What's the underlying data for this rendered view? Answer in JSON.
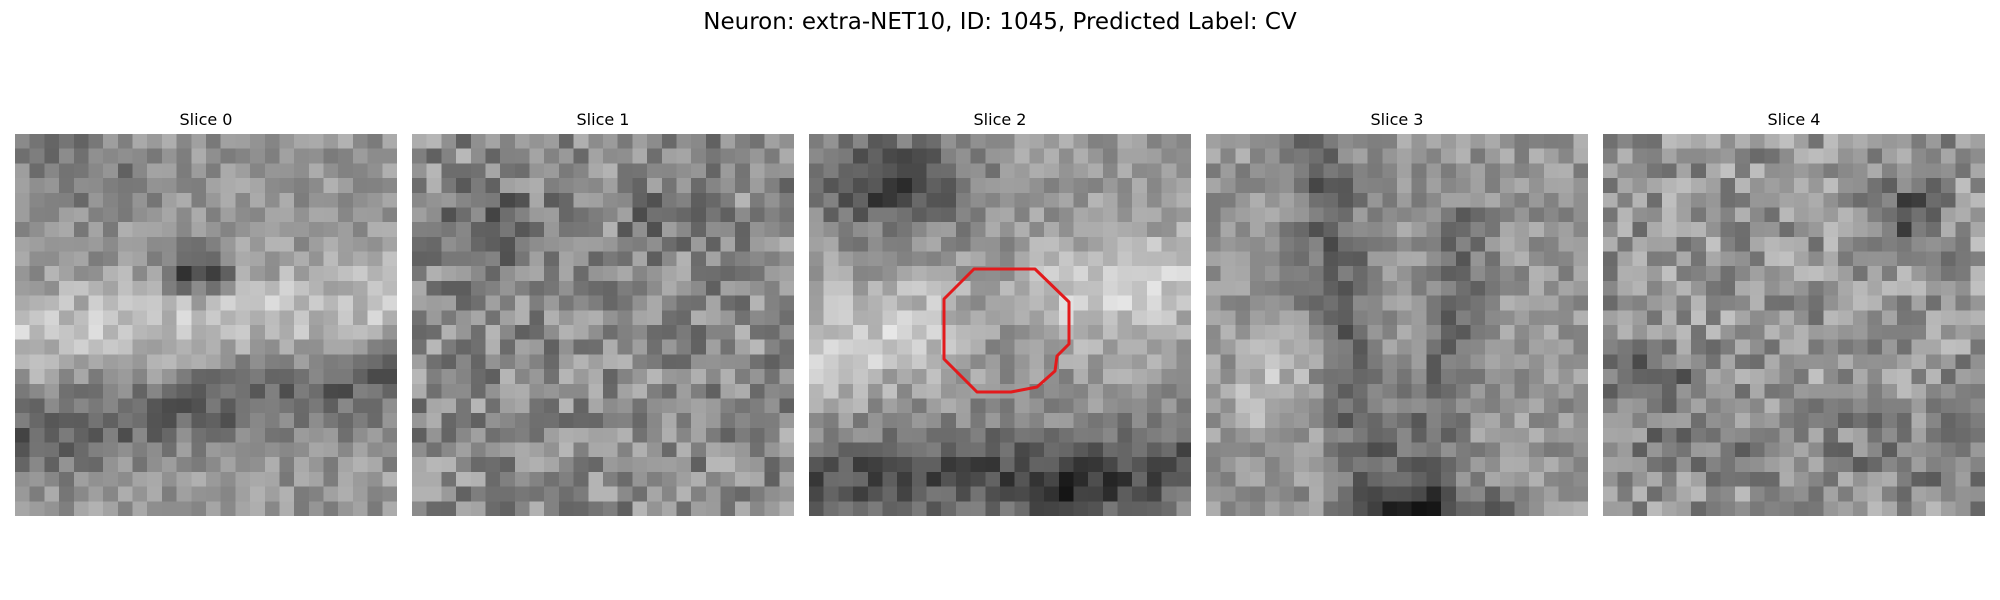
{
  "figure": {
    "title": "Neuron: extra-NET10, ID: 1045, Predicted Label: CV"
  },
  "panels": [
    {
      "title": "Slice 0",
      "highlighted": false
    },
    {
      "title": "Slice 1",
      "highlighted": false
    },
    {
      "title": "Slice 2",
      "highlighted": true
    },
    {
      "title": "Slice 3",
      "highlighted": false
    },
    {
      "title": "Slice 4",
      "highlighted": false
    }
  ],
  "colors": {
    "background": "#ffffff",
    "outline": "#e31a1c",
    "colormap": "grayscale"
  }
}
